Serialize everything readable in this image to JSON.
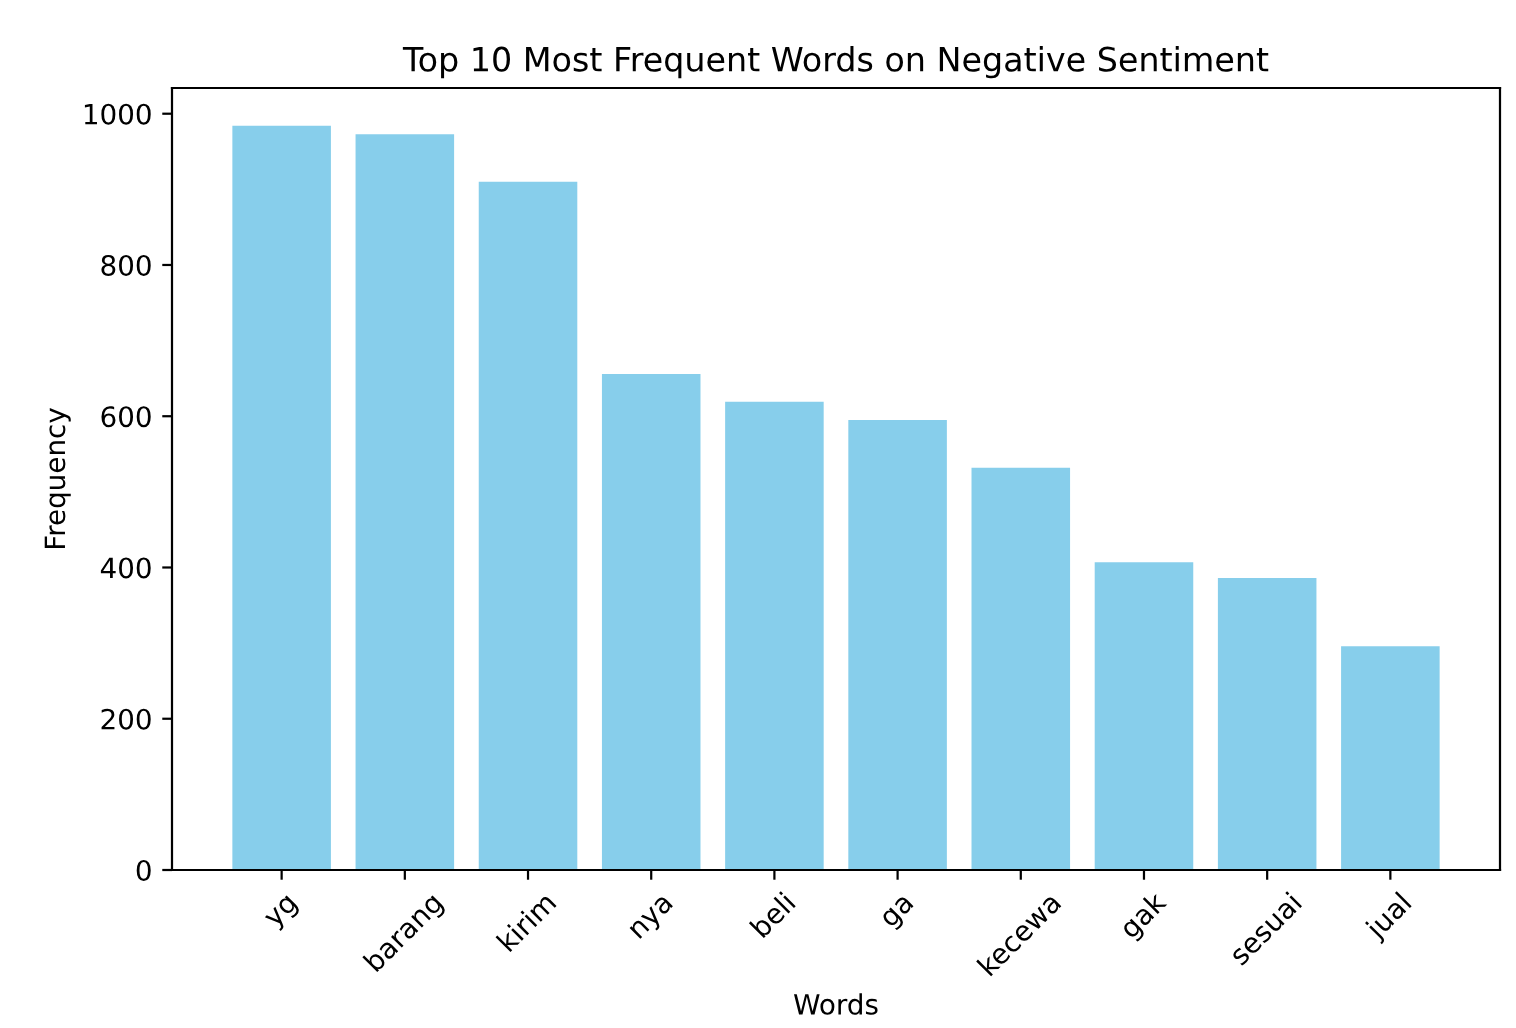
{
  "chart_data": {
    "type": "bar",
    "title": "Top 10 Most Frequent Words on Negative Sentiment",
    "xlabel": "Words",
    "ylabel": "Frequency",
    "categories": [
      "yg",
      "barang",
      "kirim",
      "nya",
      "beli",
      "ga",
      "kecewa",
      "gak",
      "sesuai",
      "jual"
    ],
    "values": [
      984,
      973,
      910,
      656,
      619,
      595,
      532,
      407,
      386,
      296
    ],
    "color": "#87ceeb",
    "ylim": [
      0,
      1034
    ],
    "yticks": [
      0,
      200,
      400,
      600,
      800,
      1000
    ],
    "grid": false
  }
}
